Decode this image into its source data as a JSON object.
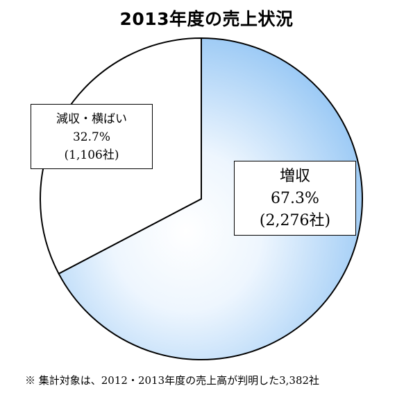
{
  "chart_data": {
    "type": "pie",
    "title": "2013年度の売上状況",
    "slices": [
      {
        "label": "増収",
        "percent_text": "67.3%",
        "count_text": "(2,276社)",
        "value": 67.3,
        "count": 2276,
        "color": "#a9cff5"
      },
      {
        "label": "減収・横ばい",
        "percent_text": "32.7%",
        "count_text": "(1,106社)",
        "value": 32.7,
        "count": 1106,
        "color": "#ffffff"
      }
    ],
    "start_angle_deg": 0,
    "direction": "clockwise"
  },
  "footnote": "※ 集計対象は、2012・2013年度の売上高が判明した3,382社"
}
